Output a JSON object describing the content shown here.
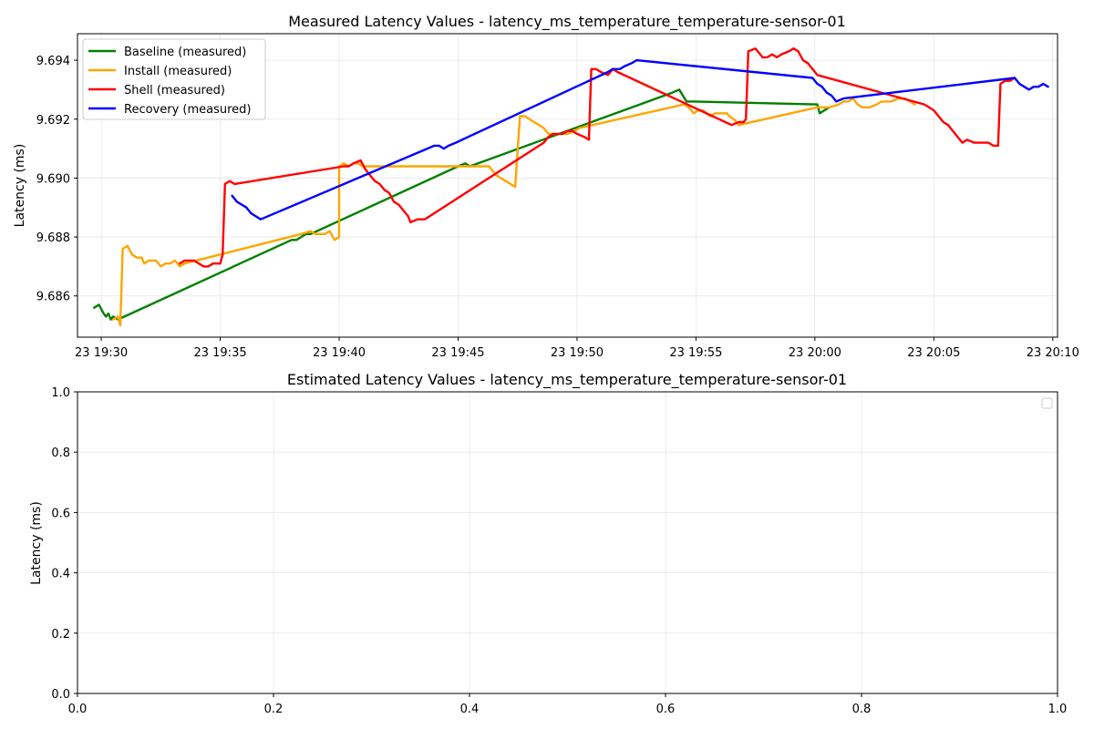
{
  "chart_data": [
    {
      "type": "line",
      "title": "Measured Latency Values - latency_ms_temperature_temperature-sensor-01",
      "xlabel": "",
      "ylabel": "Latency (ms)",
      "x_ticks": [
        {
          "m": 0,
          "label": "23 19:30"
        },
        {
          "m": 5,
          "label": "23 19:35"
        },
        {
          "m": 10,
          "label": "23 19:40"
        },
        {
          "m": 15,
          "label": "23 19:45"
        },
        {
          "m": 20,
          "label": "23 19:50"
        },
        {
          "m": 25,
          "label": "23 19:55"
        },
        {
          "m": 30,
          "label": "23 20:00"
        },
        {
          "m": 35,
          "label": "23 20:05"
        },
        {
          "m": 40,
          "label": "23 20:10"
        }
      ],
      "xlim": [
        -1.0,
        40.2
      ],
      "ylim": [
        9.6846,
        9.6949
      ],
      "y_ticks": [
        "9.686",
        "9.688",
        "9.690",
        "9.692",
        "9.694"
      ],
      "grid": true,
      "legend_position": "upper-left",
      "series": [
        {
          "name": "Baseline (measured)",
          "color": "#008000",
          "points": [
            [
              -0.3,
              9.6856
            ],
            [
              -0.1,
              9.6857
            ],
            [
              0.1,
              9.6854
            ],
            [
              0.2,
              9.6853
            ],
            [
              0.3,
              9.6854
            ],
            [
              0.4,
              9.6852
            ],
            [
              0.5,
              9.6853
            ],
            [
              0.7,
              9.6852
            ],
            [
              8,
              9.6879
            ],
            [
              8.2,
              9.6879
            ],
            [
              8.4,
              9.688
            ],
            [
              8.6,
              9.6881
            ],
            [
              8.8,
              9.6881
            ],
            [
              15,
              9.6904
            ],
            [
              15.3,
              9.6905
            ],
            [
              15.5,
              9.6904
            ],
            [
              24,
              9.6929
            ],
            [
              24.3,
              9.693
            ],
            [
              24.6,
              9.6926
            ],
            [
              24.9,
              9.6926
            ],
            [
              30.1,
              9.6925
            ],
            [
              30.2,
              9.6922
            ],
            [
              30.6,
              9.6924
            ]
          ]
        },
        {
          "name": "Install (measured)",
          "color": "#ffa500",
          "points": [
            [
              0.5,
              9.6852
            ],
            [
              0.7,
              9.6853
            ],
            [
              0.8,
              9.685
            ],
            [
              0.9,
              9.6876
            ],
            [
              1.1,
              9.6877
            ],
            [
              1.3,
              9.6874
            ],
            [
              1.5,
              9.6873
            ],
            [
              1.7,
              9.6873
            ],
            [
              1.8,
              9.6871
            ],
            [
              2,
              9.6872
            ],
            [
              2.3,
              9.6872
            ],
            [
              2.5,
              9.687
            ],
            [
              2.7,
              9.6871
            ],
            [
              2.9,
              9.6871
            ],
            [
              3.1,
              9.6872
            ],
            [
              3.3,
              9.687
            ],
            [
              3.5,
              9.6871
            ],
            [
              8.4,
              9.6881
            ],
            [
              8.8,
              9.6882
            ],
            [
              9,
              9.6881
            ],
            [
              9.2,
              9.6881
            ],
            [
              9.4,
              9.6881
            ],
            [
              9.6,
              9.6882
            ],
            [
              9.8,
              9.6879
            ],
            [
              10,
              9.688
            ],
            [
              10,
              9.6904
            ],
            [
              10.2,
              9.6905
            ],
            [
              10.4,
              9.6904
            ],
            [
              10.6,
              9.6905
            ],
            [
              10.8,
              9.6905
            ],
            [
              11,
              9.6904
            ],
            [
              15.5,
              9.6904
            ],
            [
              16.3,
              9.6904
            ],
            [
              16.6,
              9.6901
            ],
            [
              16.8,
              9.69
            ],
            [
              17,
              9.6899
            ],
            [
              17.2,
              9.6898
            ],
            [
              17.4,
              9.6897
            ],
            [
              17.6,
              9.6921
            ],
            [
              17.8,
              9.6921
            ],
            [
              18,
              9.692
            ],
            [
              18.2,
              9.6919
            ],
            [
              18.4,
              9.6918
            ],
            [
              18.6,
              9.6917
            ],
            [
              18.8,
              9.6915
            ],
            [
              19,
              9.6915
            ],
            [
              19.3,
              9.6915
            ],
            [
              19.6,
              9.6915
            ],
            [
              19.9,
              9.6916
            ],
            [
              20.1,
              9.6917
            ],
            [
              24.5,
              9.6925
            ],
            [
              24.7,
              9.6924
            ],
            [
              24.9,
              9.6922
            ],
            [
              25.1,
              9.6923
            ],
            [
              25.3,
              9.6923
            ],
            [
              25.6,
              9.6921
            ],
            [
              25.8,
              9.6922
            ],
            [
              26.1,
              9.6922
            ],
            [
              26.3,
              9.6922
            ],
            [
              26.4,
              9.6921
            ],
            [
              26.6,
              9.692
            ],
            [
              26.8,
              9.6918
            ],
            [
              30.1,
              9.6924
            ],
            [
              30.4,
              9.6924
            ],
            [
              30.6,
              9.6924
            ],
            [
              31,
              9.6925
            ],
            [
              31.2,
              9.6926
            ],
            [
              31.4,
              9.6926
            ],
            [
              31.6,
              9.6927
            ],
            [
              31.8,
              9.6925
            ],
            [
              32,
              9.6924
            ],
            [
              32.3,
              9.6924
            ],
            [
              32.6,
              9.6925
            ],
            [
              32.8,
              9.6926
            ],
            [
              33,
              9.6926
            ],
            [
              33.2,
              9.6926
            ],
            [
              33.5,
              9.6927
            ],
            [
              33.8,
              9.6927
            ],
            [
              34.2,
              9.6925
            ]
          ]
        },
        {
          "name": "Shell (measured)",
          "color": "#ff0000",
          "points": [
            [
              3.3,
              9.6871
            ],
            [
              3.5,
              9.6872
            ],
            [
              3.7,
              9.6872
            ],
            [
              3.9,
              9.6872
            ],
            [
              4.1,
              9.6871
            ],
            [
              4.3,
              9.687
            ],
            [
              4.5,
              9.687
            ],
            [
              4.7,
              9.6871
            ],
            [
              4.9,
              9.6871
            ],
            [
              5,
              9.6871
            ],
            [
              5.1,
              9.6874
            ],
            [
              5.2,
              9.6898
            ],
            [
              5.4,
              9.6899
            ],
            [
              5.6,
              9.6898
            ],
            [
              10.2,
              9.6904
            ],
            [
              10.4,
              9.6904
            ],
            [
              10.6,
              9.6905
            ],
            [
              10.9,
              9.6906
            ],
            [
              11.1,
              9.6903
            ],
            [
              11.3,
              9.6901
            ],
            [
              11.5,
              9.6899
            ],
            [
              11.7,
              9.6898
            ],
            [
              11.9,
              9.6896
            ],
            [
              12.1,
              9.6895
            ],
            [
              12.3,
              9.6892
            ],
            [
              12.5,
              9.6891
            ],
            [
              12.7,
              9.6889
            ],
            [
              12.9,
              9.6887
            ],
            [
              13,
              9.6885
            ],
            [
              13.3,
              9.6886
            ],
            [
              13.6,
              9.6886
            ],
            [
              18.6,
              9.6912
            ],
            [
              18.8,
              9.6914
            ],
            [
              19,
              9.6915
            ],
            [
              19.2,
              9.6915
            ],
            [
              19.4,
              9.6915
            ],
            [
              19.6,
              9.6916
            ],
            [
              19.8,
              9.6916
            ],
            [
              20,
              9.6915
            ],
            [
              20.3,
              9.6914
            ],
            [
              20.5,
              9.6913
            ],
            [
              20.6,
              9.6937
            ],
            [
              20.8,
              9.6937
            ],
            [
              21,
              9.6936
            ],
            [
              21.3,
              9.6935
            ],
            [
              21.5,
              9.6937
            ],
            [
              21.7,
              9.6936
            ],
            [
              26.5,
              9.6918
            ],
            [
              26.8,
              9.6919
            ],
            [
              27,
              9.6919
            ],
            [
              27.1,
              9.692
            ],
            [
              27.2,
              9.6943
            ],
            [
              27.5,
              9.6944
            ],
            [
              27.8,
              9.6941
            ],
            [
              28,
              9.6941
            ],
            [
              28.2,
              9.6942
            ],
            [
              28.4,
              9.6941
            ],
            [
              28.6,
              9.6942
            ],
            [
              28.9,
              9.6943
            ],
            [
              29.1,
              9.6944
            ],
            [
              29.3,
              9.6943
            ],
            [
              29.5,
              9.694
            ],
            [
              29.7,
              9.6939
            ],
            [
              29.9,
              9.6937
            ],
            [
              30.1,
              9.6935
            ],
            [
              34.6,
              9.6925
            ],
            [
              34.8,
              9.6924
            ],
            [
              35,
              9.6923
            ],
            [
              35.2,
              9.6921
            ],
            [
              35.4,
              9.6919
            ],
            [
              35.6,
              9.6918
            ],
            [
              35.8,
              9.6916
            ],
            [
              36,
              9.6914
            ],
            [
              36.2,
              9.6912
            ],
            [
              36.4,
              9.6913
            ],
            [
              36.7,
              9.6912
            ],
            [
              37,
              9.6912
            ],
            [
              37.3,
              9.6912
            ],
            [
              37.5,
              9.6911
            ],
            [
              37.7,
              9.6911
            ],
            [
              37.8,
              9.6932
            ],
            [
              38,
              9.6933
            ],
            [
              38.2,
              9.6933
            ],
            [
              38.4,
              9.6934
            ]
          ]
        },
        {
          "name": "Recovery (measured)",
          "color": "#0000ff",
          "points": [
            [
              5.5,
              9.6894
            ],
            [
              5.7,
              9.6892
            ],
            [
              5.9,
              9.6891
            ],
            [
              6.1,
              9.689
            ],
            [
              6.3,
              9.6888
            ],
            [
              6.5,
              9.6887
            ],
            [
              6.7,
              9.6886
            ],
            [
              14,
              9.6911
            ],
            [
              14.2,
              9.6911
            ],
            [
              14.4,
              9.691
            ],
            [
              14.6,
              9.6911
            ],
            [
              14.9,
              9.6912
            ],
            [
              21.3,
              9.6936
            ],
            [
              21.5,
              9.6937
            ],
            [
              21.8,
              9.6937
            ],
            [
              22,
              9.6938
            ],
            [
              22.3,
              9.6939
            ],
            [
              22.5,
              9.694
            ],
            [
              29.9,
              9.6934
            ],
            [
              30.1,
              9.6932
            ],
            [
              30.3,
              9.6931
            ],
            [
              30.5,
              9.6929
            ],
            [
              30.7,
              9.6928
            ],
            [
              30.9,
              9.6926
            ],
            [
              31.2,
              9.6927
            ],
            [
              38.4,
              9.6934
            ],
            [
              38.6,
              9.6932
            ],
            [
              38.8,
              9.6931
            ],
            [
              39,
              9.693
            ],
            [
              39.2,
              9.6931
            ],
            [
              39.4,
              9.6931
            ],
            [
              39.6,
              9.6932
            ],
            [
              39.8,
              9.6931
            ]
          ]
        }
      ]
    },
    {
      "type": "line",
      "title": "Estimated Latency Values - latency_ms_temperature_temperature-sensor-01",
      "xlabel": "",
      "ylabel": "Latency (ms)",
      "xlim": [
        0,
        1
      ],
      "ylim": [
        0,
        1
      ],
      "x_ticks": [
        "0.0",
        "0.2",
        "0.4",
        "0.6",
        "0.8",
        "1.0"
      ],
      "y_ticks": [
        "0.0",
        "0.2",
        "0.4",
        "0.6",
        "0.8",
        "1.0"
      ],
      "grid": true,
      "legend_position": "upper-right",
      "series": []
    }
  ]
}
